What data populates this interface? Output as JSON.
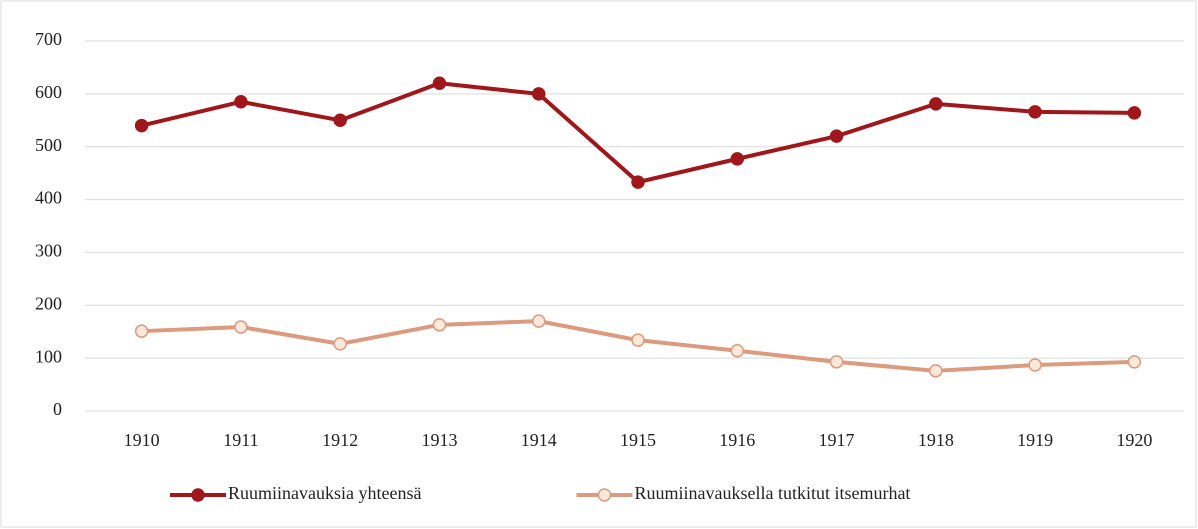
{
  "chart_data": {
    "type": "line",
    "categories": [
      "1910",
      "1911",
      "1912",
      "1913",
      "1914",
      "1915",
      "1916",
      "1917",
      "1918",
      "1919",
      "1920"
    ],
    "series": [
      {
        "name": "Ruumiinavauksia yhteensä",
        "color": "#a0171b",
        "marker_fill": "#a0171b",
        "values": [
          540,
          585,
          550,
          620,
          600,
          433,
          477,
          520,
          581,
          566,
          564
        ]
      },
      {
        "name": "Ruumiinavauksella tutkitut itsemurhat",
        "color": "#dc9a7e",
        "marker_fill": "#fde9dc",
        "values": [
          151,
          159,
          127,
          163,
          170,
          134,
          114,
          93,
          76,
          87,
          93
        ]
      }
    ],
    "ylim": [
      0,
      700
    ],
    "yticks": [
      0,
      100,
      200,
      300,
      400,
      500,
      600,
      700
    ],
    "grid": true,
    "legend": "bottom"
  }
}
